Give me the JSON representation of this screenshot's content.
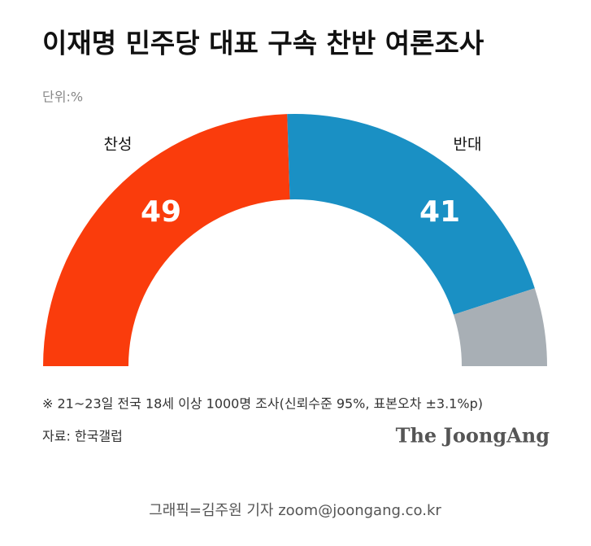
{
  "chart_data": {
    "type": "half-donut",
    "title": "이재명 민주당 대표 구속 찬반 여론조사",
    "unit_label": "단위:%",
    "categories": [
      "찬성",
      "반대",
      null
    ],
    "values": [
      49,
      41,
      10
    ],
    "colors": [
      "#fa3c0c",
      "#1a90c4",
      "#a8afb5"
    ],
    "note": "※ 21~23일 전국 18세 이상 1000명 조사(신뢰수준 95%, 표본오차 ±3.1%p)",
    "source": "자료: 한국갤럽",
    "brand": "The JoongAng",
    "credit": "그래픽=김주원 기자 zoom@joongang.co.kr"
  }
}
